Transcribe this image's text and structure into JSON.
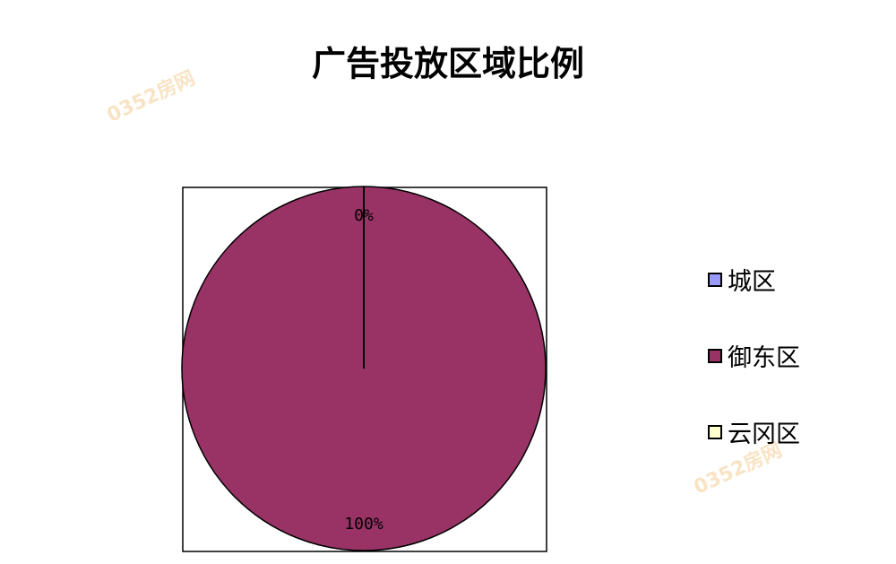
{
  "chart_data": {
    "type": "pie",
    "title": "广告投放区域比例",
    "categories": [
      "城区",
      "御东区",
      "云冈区"
    ],
    "values": [
      0,
      100,
      0
    ],
    "data_labels": [
      "0%",
      "100%",
      "0%"
    ],
    "colors": [
      "#9999FF",
      "#993366",
      "#FFFFCC"
    ],
    "legend": "right"
  },
  "watermark": "0352房网"
}
